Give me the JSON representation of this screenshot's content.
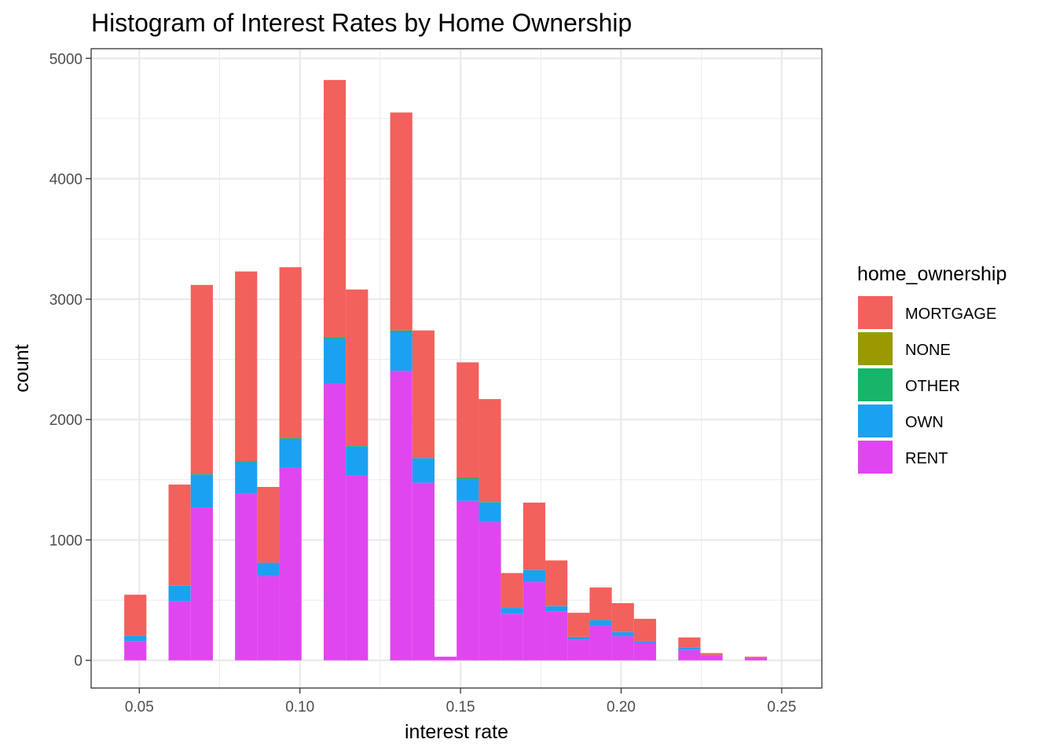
{
  "chart_data": {
    "type": "bar",
    "stacked": true,
    "title": "Histogram of Interest Rates by Home Ownership",
    "xlabel": "interest rate",
    "ylabel": "count",
    "xlim": [
      0.035,
      0.2625
    ],
    "ylim": [
      -230,
      5080
    ],
    "xticks": [
      0.05,
      0.1,
      0.15,
      0.2,
      0.25
    ],
    "xtick_labels": [
      "0.05",
      "0.10",
      "0.15",
      "0.20",
      "0.25"
    ],
    "yticks": [
      0,
      1000,
      2000,
      3000,
      4000,
      5000
    ],
    "ytick_labels": [
      "0",
      "1000",
      "2000",
      "3000",
      "4000",
      "5000"
    ],
    "grid": true,
    "legend_title": "home_ownership",
    "legend_position": "right",
    "bin_edges": [
      0.0453,
      0.0522,
      0.0591,
      0.066,
      0.0729,
      0.0798,
      0.0867,
      0.0936,
      0.1005,
      0.1074,
      0.1143,
      0.1212,
      0.1281,
      0.135,
      0.1419,
      0.1488,
      0.1557,
      0.1626,
      0.1695,
      0.1764,
      0.1833,
      0.1902,
      0.1971,
      0.204,
      0.2109,
      0.2178,
      0.2247,
      0.2316,
      0.2385,
      0.2454,
      0.2523
    ],
    "series": [
      {
        "name": "RENT",
        "color": "#E046EF",
        "values": [
          160,
          0,
          490,
          1270,
          0,
          1385,
          700,
          1600,
          0,
          2295,
          1535,
          0,
          2405,
          1475,
          30,
          1325,
          1150,
          385,
          650,
          405,
          170,
          285,
          200,
          145,
          0,
          85,
          40,
          0,
          20,
          0
        ]
      },
      {
        "name": "OWN",
        "color": "#1BA1F2",
        "values": [
          45,
          0,
          130,
          270,
          0,
          260,
          110,
          235,
          0,
          375,
          240,
          0,
          320,
          205,
          0,
          180,
          160,
          50,
          100,
          45,
          25,
          50,
          35,
          15,
          0,
          20,
          5,
          0,
          0,
          0
        ]
      },
      {
        "name": "OTHER",
        "color": "#17B56A",
        "values": [
          0,
          0,
          0,
          8,
          0,
          10,
          0,
          10,
          0,
          15,
          10,
          0,
          15,
          0,
          0,
          10,
          5,
          0,
          0,
          0,
          0,
          0,
          0,
          0,
          0,
          0,
          0,
          0,
          0,
          0
        ]
      },
      {
        "name": "NONE",
        "color": "#999900",
        "values": [
          0,
          0,
          0,
          0,
          0,
          0,
          0,
          0,
          0,
          0,
          0,
          0,
          0,
          0,
          0,
          0,
          0,
          0,
          0,
          0,
          0,
          0,
          0,
          0,
          0,
          0,
          0,
          0,
          0,
          0
        ]
      },
      {
        "name": "MORTGAGE",
        "color": "#F2615C",
        "values": [
          340,
          0,
          840,
          1570,
          0,
          1575,
          630,
          1420,
          0,
          2135,
          1295,
          0,
          1810,
          1060,
          0,
          960,
          855,
          290,
          560,
          380,
          200,
          270,
          240,
          185,
          0,
          85,
          15,
          0,
          10,
          0
        ]
      }
    ],
    "legend_order": [
      "MORTGAGE",
      "NONE",
      "OTHER",
      "OWN",
      "RENT"
    ]
  }
}
